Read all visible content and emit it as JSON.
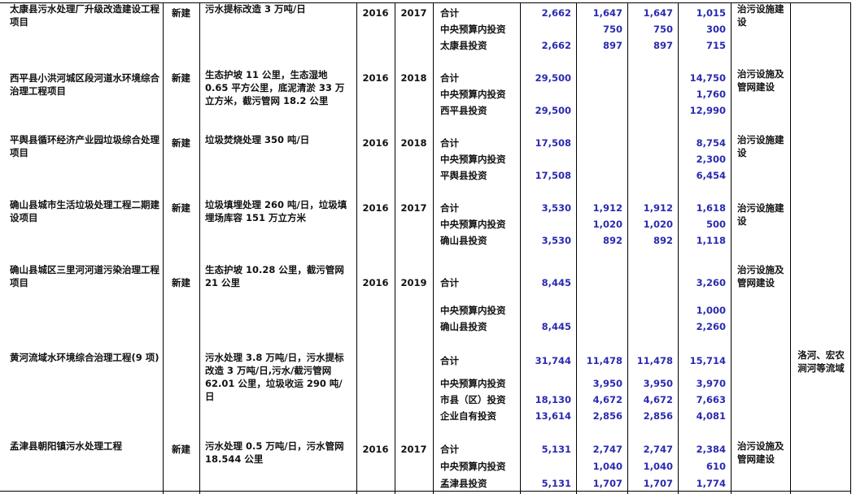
{
  "colors": {
    "number": "#2a2ab0",
    "text": "#111111",
    "grid": "#000000"
  },
  "projects": [
    {
      "name": "太康县污水处理厂升级改造建设工程项目",
      "type": "新建",
      "content": "污水提标改造 3 万吨/日",
      "start": "2016",
      "end": "2017",
      "rows": [
        {
          "label": "合计",
          "values": [
            "2,662",
            "1,647",
            "1,647",
            "1,015"
          ]
        },
        {
          "label": "中央预算内投资",
          "values": [
            "",
            "750",
            "750",
            "300"
          ]
        },
        {
          "label": "太康县投资",
          "values": [
            "2,662",
            "897",
            "897",
            "715"
          ]
        }
      ],
      "category": "治污设施建设",
      "region": ""
    },
    {
      "name": "西平县小洪河城区段河道水环境综合治理工程项目",
      "type": "新建",
      "content": "生态护坡 11 公里，生态湿地 0.65 平方公里，底泥清淤 33 万立方米，截污管网 18.2 公里",
      "start": "2016",
      "end": "2018",
      "rows": [
        {
          "label": "合计",
          "values": [
            "29,500",
            "",
            "",
            "14,750"
          ]
        },
        {
          "label": "中央预算内投资",
          "values": [
            "",
            "",
            "",
            "1,760"
          ]
        },
        {
          "label": "西平县投资",
          "values": [
            "29,500",
            "",
            "",
            "12,990"
          ]
        }
      ],
      "category": "治污设施及管网建设",
      "region": ""
    },
    {
      "name": "平舆县循环经济产业园垃圾综合处理项目",
      "type": "新建",
      "content": "垃圾焚烧处理 350 吨/日",
      "start": "2016",
      "end": "2018",
      "rows": [
        {
          "label": "合计",
          "values": [
            "17,508",
            "",
            "",
            "8,754"
          ]
        },
        {
          "label": "中央预算内投资",
          "values": [
            "",
            "",
            "",
            "2,300"
          ]
        },
        {
          "label": "平舆县投资",
          "values": [
            "17,508",
            "",
            "",
            "6,454"
          ]
        }
      ],
      "category": "治污设施建设",
      "region": ""
    },
    {
      "name": "确山县城市生活垃圾处理工程二期建设项目",
      "type": "新建",
      "content": "垃圾填埋处理 260 吨/日，垃圾填埋场库容 151 万立方米",
      "start": "2016",
      "end": "2017",
      "rows": [
        {
          "label": "合计",
          "values": [
            "3,530",
            "1,912",
            "1,912",
            "1,618"
          ]
        },
        {
          "label": "中央预算内投资",
          "values": [
            "",
            "1,020",
            "1,020",
            "500"
          ]
        },
        {
          "label": "确山县投资",
          "values": [
            "3,530",
            "892",
            "892",
            "1,118"
          ]
        }
      ],
      "category": "治污设施建设",
      "region": ""
    },
    {
      "name": "确山县城区三里河河道污染治理工程项目",
      "type": "新建",
      "content": "生态护坡 10.28 公里，截污管网 21 公里",
      "start": "2016",
      "end": "2019",
      "rows": [
        {
          "label": "合计",
          "values": [
            "8,445",
            "",
            "",
            "3,260"
          ]
        },
        {
          "label": "中央预算内投资",
          "values": [
            "",
            "",
            "",
            "1,000"
          ]
        },
        {
          "label": "确山县投资",
          "values": [
            "8,445",
            "",
            "",
            "2,260"
          ]
        }
      ],
      "category": "治污设施及管网建设",
      "region": ""
    },
    {
      "name": "黄河流域水环境综合治理工程(9 项)",
      "type": "",
      "content": "污水处理 3.8 万吨/日，污水提标改造 3 万吨/日,污水/截污管网 62.01 公里，垃圾收运 290 吨/日",
      "start": "",
      "end": "",
      "rows": [
        {
          "label": "合计",
          "values": [
            "31,744",
            "11,478",
            "11,478",
            "15,714"
          ]
        },
        {
          "label": "中央预算内投资",
          "values": [
            "",
            "3,950",
            "3,950",
            "3,970"
          ]
        },
        {
          "label": "市县（区）投资",
          "values": [
            "18,130",
            "4,672",
            "4,672",
            "7,663"
          ]
        },
        {
          "label": "企业自有投资",
          "values": [
            "13,614",
            "2,856",
            "2,856",
            "4,081"
          ]
        }
      ],
      "category": "",
      "region": "洛河、宏农涧河等流域"
    },
    {
      "name": "孟津县朝阳镇污水处理工程",
      "type": "新建",
      "content": "污水处理 0.5 万吨/日，污水管网 18.544 公里",
      "start": "2016",
      "end": "2017",
      "rows": [
        {
          "label": "合计",
          "values": [
            "5,131",
            "2,747",
            "2,747",
            "2,384"
          ]
        },
        {
          "label": "中央预算内投资",
          "values": [
            "",
            "1,040",
            "1,040",
            "610"
          ]
        },
        {
          "label": "孟津县投资",
          "values": [
            "5,131",
            "1,707",
            "1,707",
            "1,774"
          ]
        }
      ],
      "category": "治污设施及管网建设",
      "region": ""
    }
  ]
}
